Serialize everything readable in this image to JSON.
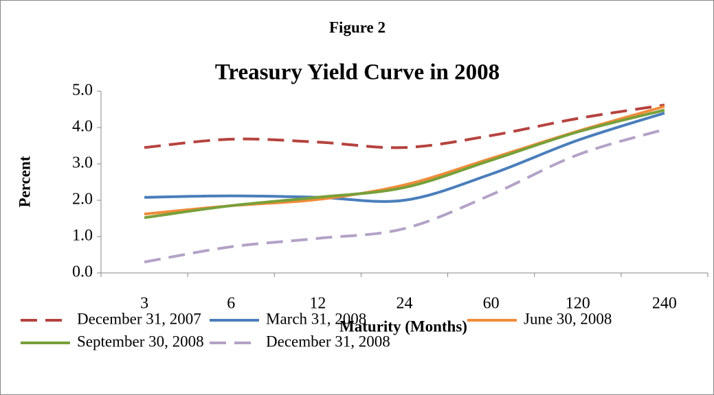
{
  "chart_data": {
    "type": "line",
    "supertitle": "Figure 2",
    "title": "Treasury Yield Curve in 2008",
    "xlabel": "Maturity (Months)",
    "ylabel": "Percent",
    "categories": [
      "3",
      "6",
      "12",
      "24",
      "60",
      "120",
      "240"
    ],
    "series": [
      {
        "name": "December 31, 2007",
        "color": "#b5433f",
        "dashed": true,
        "values": [
          3.45,
          3.68,
          3.6,
          3.45,
          3.78,
          4.25,
          4.62
        ]
      },
      {
        "name": "March 31, 2008",
        "color": "#4a7ebb",
        "dashed": false,
        "values": [
          2.08,
          2.12,
          2.08,
          2.0,
          2.72,
          3.65,
          4.4
        ]
      },
      {
        "name": "June 30, 2008",
        "color": "#f08c3a",
        "dashed": false,
        "values": [
          1.62,
          1.85,
          2.02,
          2.42,
          3.15,
          3.9,
          4.58
        ]
      },
      {
        "name": "September 30, 2008",
        "color": "#77a03a",
        "dashed": false,
        "values": [
          1.52,
          1.85,
          2.08,
          2.35,
          3.1,
          3.88,
          4.48
        ]
      },
      {
        "name": "December 31, 2008",
        "color": "#b3a2c7",
        "dashed": true,
        "values": [
          0.3,
          0.72,
          0.95,
          1.22,
          2.15,
          3.25,
          3.95
        ]
      }
    ],
    "ylim": [
      0,
      5
    ],
    "yticks": [
      {
        "value": 0,
        "label": "0.0"
      },
      {
        "value": 1,
        "label": "1.0"
      },
      {
        "value": 2,
        "label": "2.0"
      },
      {
        "value": 3,
        "label": "3.0"
      },
      {
        "value": 4,
        "label": "4.0"
      },
      {
        "value": 5,
        "label": "5.0"
      }
    ],
    "grid": false,
    "legend": "bottom"
  }
}
